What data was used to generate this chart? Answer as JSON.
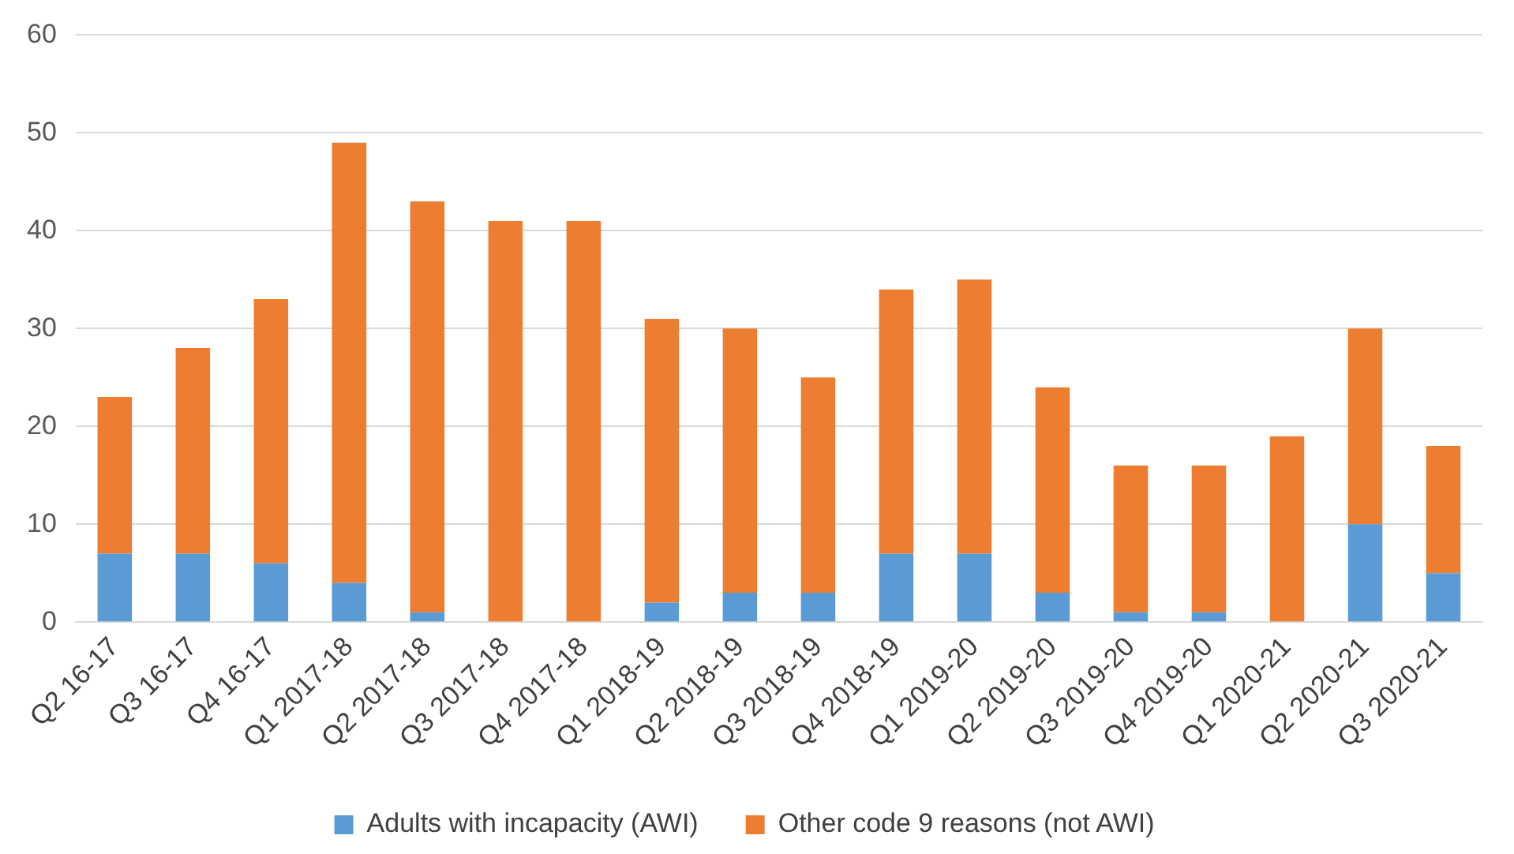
{
  "chart_data": {
    "type": "bar",
    "stacked": true,
    "categories": [
      "Q2 16-17",
      "Q3 16-17",
      "Q4 16-17",
      "Q1 2017-18",
      "Q2 2017-18",
      "Q3 2017-18",
      "Q4 2017-18",
      "Q1 2018-19",
      "Q2 2018-19",
      "Q3 2018-19",
      "Q4 2018-19",
      "Q1 2019-20",
      "Q2 2019-20",
      "Q3 2019-20",
      "Q4 2019-20",
      "Q1 2020-21",
      "Q2 2020-21",
      "Q3 2020-21"
    ],
    "series": [
      {
        "name": "Adults with incapacity (AWI)",
        "color": "#5b9bd5",
        "values": [
          7,
          7,
          6,
          4,
          1,
          0,
          0,
          2,
          3,
          3,
          7,
          7,
          3,
          1,
          1,
          0,
          10,
          5
        ]
      },
      {
        "name": "Other code 9 reasons (not AWI)",
        "color": "#ed7d31",
        "values": [
          16,
          21,
          27,
          45,
          42,
          41,
          41,
          29,
          27,
          22,
          27,
          28,
          21,
          15,
          15,
          19,
          20,
          13
        ]
      }
    ],
    "ylim": [
      0,
      60
    ],
    "yticks": [
      0,
      10,
      20,
      30,
      40,
      50,
      60
    ],
    "grid": "y",
    "legend": "bottom"
  }
}
